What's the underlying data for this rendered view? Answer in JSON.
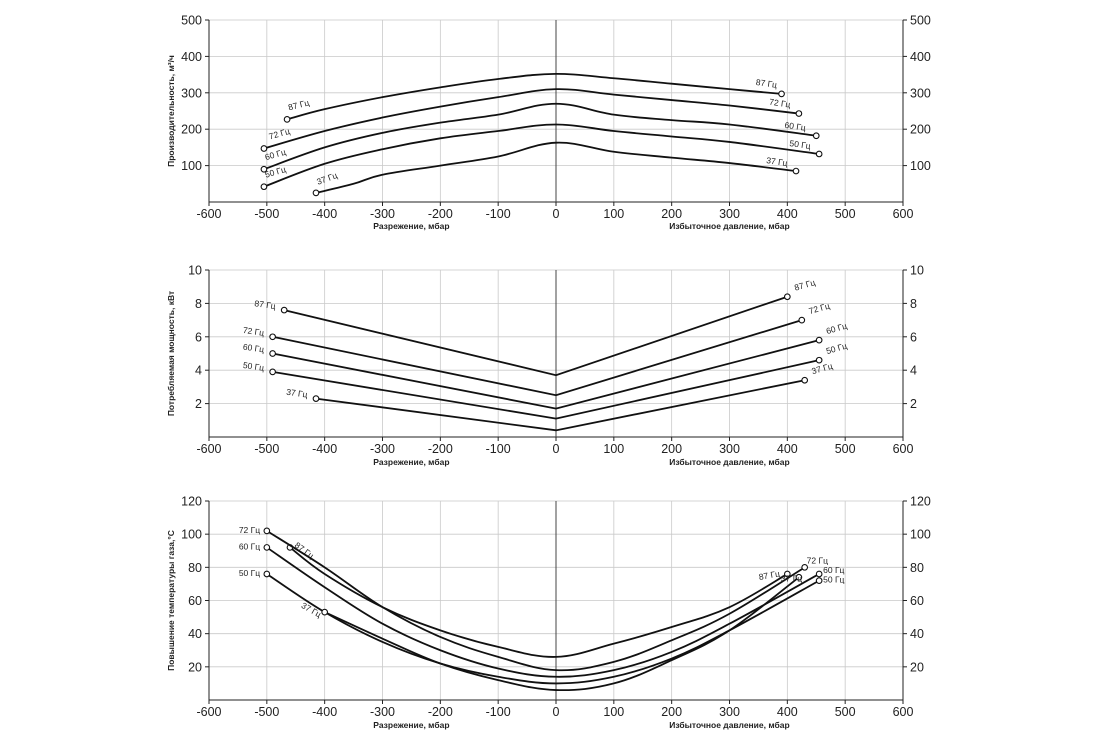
{
  "chart_data": [
    {
      "type": "line",
      "ylabel": "Производительность, м³/ч",
      "xlabel_left": "Разрежение, мбар",
      "xlabel_right": "Избыточное давление, мбар",
      "xlim": [
        -600,
        600
      ],
      "xticks": [
        -600,
        -500,
        -400,
        -300,
        -200,
        -100,
        0,
        100,
        200,
        300,
        400,
        500,
        600
      ],
      "ylim": [
        0,
        500
      ],
      "yticks": [
        100,
        200,
        300,
        400,
        500
      ],
      "series": [
        {
          "name": "87 Гц",
          "x": [
            -465,
            -400,
            -300,
            -200,
            -100,
            0,
            100,
            200,
            300,
            390
          ],
          "y": [
            227,
            255,
            288,
            315,
            338,
            352,
            340,
            325,
            310,
            297
          ]
        },
        {
          "name": "72 Гц",
          "x": [
            -505,
            -400,
            -300,
            -200,
            -100,
            0,
            100,
            200,
            300,
            420
          ],
          "y": [
            147,
            195,
            232,
            262,
            288,
            310,
            295,
            280,
            265,
            243
          ]
        },
        {
          "name": "60 Гц",
          "x": [
            -505,
            -400,
            -300,
            -200,
            -100,
            0,
            100,
            200,
            300,
            450
          ],
          "y": [
            90,
            150,
            190,
            218,
            240,
            270,
            240,
            225,
            213,
            182
          ]
        },
        {
          "name": "50 Гц",
          "x": [
            -505,
            -400,
            -300,
            -200,
            -100,
            0,
            100,
            200,
            300,
            455
          ],
          "y": [
            42,
            105,
            145,
            175,
            195,
            213,
            195,
            180,
            165,
            132
          ]
        },
        {
          "name": "37 Гц",
          "x": [
            -415,
            -350,
            -300,
            -200,
            -100,
            0,
            100,
            200,
            300,
            415
          ],
          "y": [
            25,
            50,
            75,
            100,
            125,
            163,
            138,
            122,
            107,
            85
          ]
        }
      ]
    },
    {
      "type": "line",
      "ylabel": "Потребляемая мощность, кВт",
      "xlabel_left": "Разрежение, мбар",
      "xlabel_right": "Избыточное давление, мбар",
      "xlim": [
        -600,
        600
      ],
      "xticks": [
        -600,
        -500,
        -400,
        -300,
        -200,
        -100,
        0,
        100,
        200,
        300,
        400,
        500,
        600
      ],
      "ylim": [
        0,
        10
      ],
      "yticks": [
        2,
        4,
        6,
        8,
        10
      ],
      "series": [
        {
          "name": "87 Гц",
          "x": [
            -470,
            0,
            400
          ],
          "y": [
            7.6,
            3.7,
            8.4
          ]
        },
        {
          "name": "72 Гц",
          "x": [
            -490,
            0,
            425
          ],
          "y": [
            6.0,
            2.5,
            7.0
          ]
        },
        {
          "name": "60 Гц",
          "x": [
            -490,
            0,
            455
          ],
          "y": [
            5.0,
            1.7,
            5.8
          ]
        },
        {
          "name": "50 Гц",
          "x": [
            -490,
            0,
            455
          ],
          "y": [
            3.9,
            1.1,
            4.6
          ]
        },
        {
          "name": "37 Гц",
          "x": [
            -415,
            0,
            430
          ],
          "y": [
            2.3,
            0.4,
            3.4
          ]
        }
      ]
    },
    {
      "type": "line",
      "ylabel": "Повышение температуры газа,°C",
      "xlabel_left": "Разрежение, мбар",
      "xlabel_right": "Избыточное давление, мбар",
      "xlim": [
        -600,
        600
      ],
      "xticks": [
        -600,
        -500,
        -400,
        -300,
        -200,
        -100,
        0,
        100,
        200,
        300,
        400,
        500,
        600
      ],
      "ylim": [
        0,
        120
      ],
      "yticks": [
        20,
        40,
        60,
        80,
        100,
        120
      ],
      "series": [
        {
          "name": "87 Гц",
          "x": [
            -460,
            -400,
            -300,
            -200,
            -100,
            0,
            100,
            200,
            300,
            400
          ],
          "y": [
            92,
            76,
            56,
            42,
            32,
            26,
            34,
            44,
            56,
            76
          ]
        },
        {
          "name": "72 Гц",
          "x": [
            -500,
            -400,
            -300,
            -200,
            -100,
            0,
            100,
            200,
            300,
            430
          ],
          "y": [
            102,
            80,
            56,
            38,
            26,
            18,
            23,
            36,
            52,
            80
          ]
        },
        {
          "name": "60 Гц",
          "x": [
            -500,
            -400,
            -300,
            -200,
            -100,
            0,
            100,
            200,
            300,
            455
          ],
          "y": [
            92,
            68,
            46,
            30,
            19,
            14,
            18,
            29,
            46,
            76
          ]
        },
        {
          "name": "50 Гц",
          "x": [
            -500,
            -400,
            -300,
            -200,
            -100,
            0,
            100,
            200,
            300,
            455
          ],
          "y": [
            76,
            53,
            35,
            22,
            14,
            10,
            14,
            25,
            42,
            72
          ]
        },
        {
          "name": "37 Гц",
          "x": [
            -400,
            -300,
            -200,
            -100,
            0,
            100,
            200,
            300,
            420
          ],
          "y": [
            53,
            37,
            22,
            12,
            6,
            10,
            24,
            42,
            74
          ]
        }
      ]
    }
  ]
}
